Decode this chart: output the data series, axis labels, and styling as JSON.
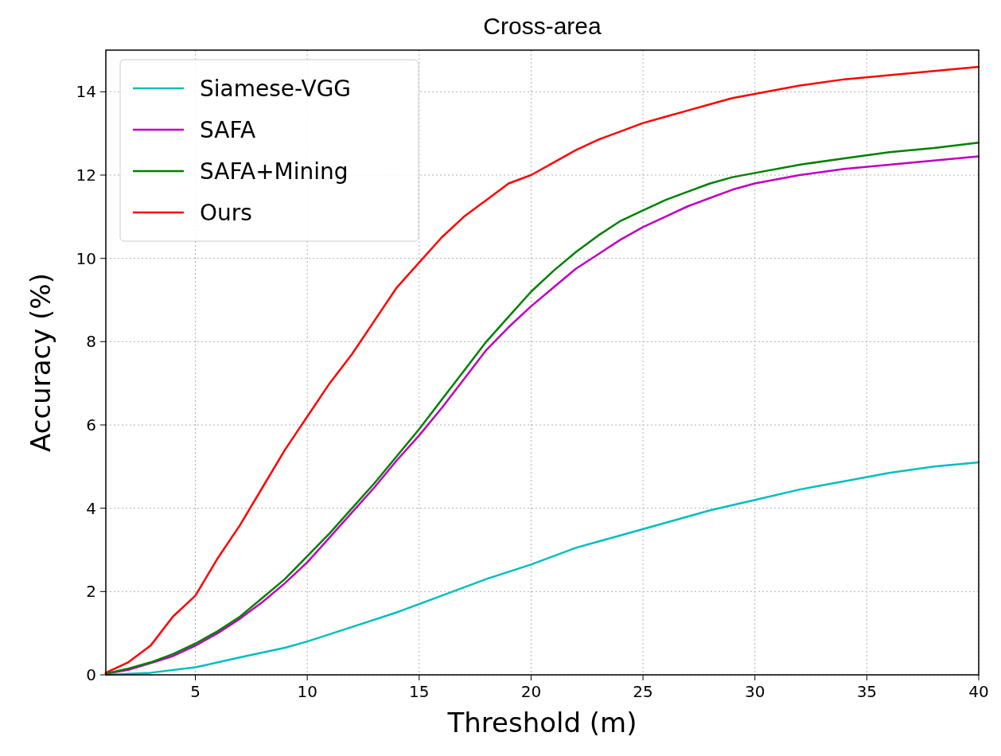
{
  "chart_data": {
    "type": "line",
    "title": "Cross-area",
    "xlabel": "Threshold (m)",
    "ylabel": "Accuracy (%)",
    "xlim": [
      1,
      40
    ],
    "xticks": [
      5,
      10,
      15,
      20,
      25,
      30,
      35,
      40
    ],
    "ylim": [
      0,
      15
    ],
    "yticks": [
      0,
      2,
      4,
      6,
      8,
      10,
      12,
      14
    ],
    "grid": true,
    "legend": "top left",
    "line_style": "solid",
    "series": [
      {
        "name": "Siamese-VGG",
        "color": "#00bfbf",
        "x": [
          1,
          3,
          5,
          7,
          9,
          10,
          12,
          14,
          16,
          18,
          20,
          22,
          24,
          26,
          28,
          30,
          32,
          34,
          36,
          38,
          40
        ],
        "values": [
          0,
          0.05,
          0.18,
          0.42,
          0.65,
          0.8,
          1.15,
          1.5,
          1.9,
          2.3,
          2.65,
          3.05,
          3.35,
          3.65,
          3.95,
          4.2,
          4.45,
          4.65,
          4.85,
          5.0,
          5.1
        ]
      },
      {
        "name": "SAFA",
        "color": "#bf00bf",
        "x": [
          1,
          2,
          3,
          4,
          5,
          6,
          7,
          8,
          9,
          10,
          11,
          12,
          13,
          14,
          15,
          16,
          17,
          18,
          19,
          20,
          21,
          22,
          23,
          24,
          25,
          26,
          27,
          28,
          29,
          30,
          32,
          34,
          36,
          38,
          40
        ],
        "values": [
          0.03,
          0.12,
          0.28,
          0.45,
          0.7,
          1.0,
          1.35,
          1.75,
          2.2,
          2.7,
          3.3,
          3.9,
          4.5,
          5.15,
          5.75,
          6.4,
          7.1,
          7.8,
          8.35,
          8.85,
          9.3,
          9.75,
          10.1,
          10.45,
          10.75,
          11.0,
          11.25,
          11.45,
          11.65,
          11.8,
          12.0,
          12.15,
          12.25,
          12.35,
          12.45
        ]
      },
      {
        "name": "SAFA+Mining",
        "color": "#008000",
        "x": [
          1,
          2,
          3,
          4,
          5,
          6,
          7,
          8,
          9,
          10,
          11,
          12,
          13,
          14,
          15,
          16,
          17,
          18,
          19,
          20,
          21,
          22,
          23,
          24,
          25,
          26,
          27,
          28,
          29,
          30,
          32,
          34,
          36,
          38,
          40
        ],
        "values": [
          0.03,
          0.15,
          0.3,
          0.5,
          0.75,
          1.05,
          1.4,
          1.85,
          2.3,
          2.85,
          3.4,
          4.0,
          4.6,
          5.25,
          5.9,
          6.6,
          7.3,
          8.0,
          8.6,
          9.2,
          9.7,
          10.15,
          10.55,
          10.9,
          11.15,
          11.4,
          11.6,
          11.8,
          11.95,
          12.05,
          12.25,
          12.4,
          12.55,
          12.65,
          12.78
        ]
      },
      {
        "name": "Ours",
        "color": "#ff0000",
        "x": [
          1,
          2,
          3,
          4,
          5,
          6,
          7,
          8,
          9,
          10,
          11,
          12,
          13,
          14,
          15,
          16,
          17,
          18,
          19,
          20,
          21,
          22,
          23,
          24,
          25,
          26,
          27,
          28,
          29,
          30,
          32,
          34,
          36,
          38,
          40
        ],
        "values": [
          0.05,
          0.3,
          0.7,
          1.4,
          1.9,
          2.8,
          3.6,
          4.5,
          5.4,
          6.2,
          7.0,
          7.7,
          8.5,
          9.3,
          9.9,
          10.5,
          11.0,
          11.4,
          11.8,
          12.0,
          12.3,
          12.6,
          12.85,
          13.05,
          13.25,
          13.4,
          13.55,
          13.7,
          13.85,
          13.95,
          14.15,
          14.3,
          14.4,
          14.5,
          14.6
        ]
      }
    ]
  }
}
